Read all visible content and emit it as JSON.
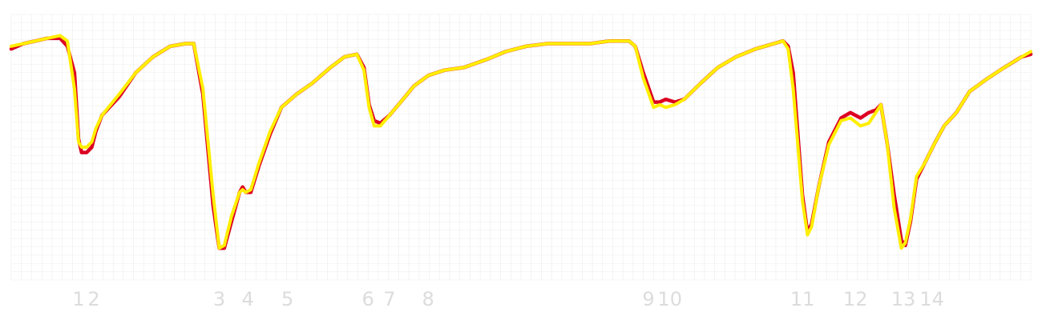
{
  "chart_data": {
    "type": "line",
    "title": "",
    "xlabel": "",
    "ylabel": "",
    "grid": true,
    "legend": "none",
    "xlim": [
      0,
      100
    ],
    "ylim": [
      0,
      100
    ],
    "x_ticks": [
      {
        "label": "1",
        "x": 6.6
      },
      {
        "label": "2",
        "x": 8.1
      },
      {
        "label": "3",
        "x": 20.4
      },
      {
        "label": "4",
        "x": 23.2
      },
      {
        "label": "5",
        "x": 27.1
      },
      {
        "label": "6",
        "x": 35.0
      },
      {
        "label": "7",
        "x": 37.1
      },
      {
        "label": "8",
        "x": 40.9
      },
      {
        "label": "9",
        "x": 62.5
      },
      {
        "label": "10",
        "x": 64.6
      },
      {
        "label": "11",
        "x": 77.6
      },
      {
        "label": "12",
        "x": 82.8
      },
      {
        "label": "13",
        "x": 87.5
      },
      {
        "label": "14",
        "x": 90.3
      }
    ],
    "series": [
      {
        "color": "#dd0022",
        "x": [
          0,
          1.2,
          2.4,
          3.5,
          4.8,
          5.5,
          6.2,
          6.6,
          6.9,
          7.4,
          7.9,
          8.3,
          8.9,
          10.6,
          12.2,
          13.9,
          15.6,
          17.1,
          17.9,
          18.8,
          19.8,
          20.4,
          20.9,
          21.6,
          22.4,
          22.7,
          23.0,
          23.5,
          24.3,
          25.4,
          26.5,
          28.0,
          29.5,
          31.3,
          32.7,
          33.9,
          34.6,
          35.1,
          35.6,
          36.2,
          37.1,
          38.2,
          39.5,
          40.9,
          42.5,
          44.4,
          46.6,
          48.5,
          50.5,
          52.6,
          54.8,
          56.8,
          58.7,
          60.6,
          61.2,
          62.0,
          63.0,
          63.6,
          64.2,
          65.1,
          66.0,
          67.6,
          69.3,
          71.1,
          73.0,
          74.8,
          75.7,
          76.2,
          76.7,
          77.6,
          78.1,
          78.5,
          79.2,
          80.2,
          81.4,
          82.3,
          83.3,
          84.1,
          84.8,
          85.3,
          85.9,
          86.6,
          87.3,
          87.7,
          88.2,
          88.8,
          89.6,
          90.5,
          91.5,
          92.7,
          94.0,
          95.8,
          97.4,
          99.1,
          100
        ],
        "y": [
          87,
          89,
          90,
          91,
          91,
          88,
          78,
          53,
          48,
          48,
          50,
          56,
          62,
          69,
          78,
          84,
          88,
          89,
          89,
          70,
          28,
          12,
          12,
          22,
          33,
          35,
          33,
          33,
          43,
          55,
          65,
          70,
          74,
          80,
          84,
          85,
          80,
          66,
          60,
          59,
          62,
          67,
          73,
          77,
          79,
          80,
          83,
          86,
          88,
          89,
          89,
          89,
          90,
          90,
          88,
          78,
          67,
          67,
          68,
          67,
          68,
          74,
          80,
          84,
          87,
          89,
          90,
          88,
          78,
          32,
          18,
          21,
          35,
          52,
          61,
          63,
          61,
          63,
          64,
          66,
          52,
          32,
          15,
          13,
          22,
          38,
          44,
          51,
          58,
          63,
          71,
          76,
          80,
          84,
          85
        ]
      },
      {
        "color": "#ffee00",
        "x": [
          0,
          1.2,
          2.4,
          3.5,
          4.8,
          5.5,
          6.2,
          6.6,
          6.9,
          7.4,
          7.9,
          8.3,
          8.9,
          10.6,
          12.2,
          13.9,
          15.6,
          17.1,
          17.9,
          18.8,
          19.8,
          20.4,
          20.9,
          21.6,
          22.4,
          22.7,
          23.0,
          23.5,
          24.3,
          25.4,
          26.5,
          28.0,
          29.5,
          31.3,
          32.7,
          33.9,
          34.6,
          35.1,
          35.6,
          36.2,
          37.1,
          38.2,
          39.5,
          40.9,
          42.5,
          44.4,
          46.6,
          48.5,
          50.5,
          52.6,
          54.8,
          56.8,
          58.7,
          60.6,
          61.2,
          62.0,
          63.0,
          63.6,
          64.2,
          65.1,
          66.0,
          67.6,
          69.3,
          71.1,
          73.0,
          74.8,
          75.7,
          76.2,
          76.7,
          77.6,
          78.1,
          78.5,
          79.2,
          80.2,
          81.4,
          82.3,
          83.3,
          84.1,
          84.8,
          85.3,
          85.9,
          86.6,
          87.3,
          87.7,
          88.2,
          88.8,
          89.6,
          90.5,
          91.5,
          92.7,
          94.0,
          95.8,
          97.4,
          99.1,
          100
        ],
        "y": [
          88,
          89,
          90,
          91,
          92,
          90,
          72,
          52,
          50,
          50,
          52,
          57,
          62,
          70,
          78,
          84,
          88,
          89,
          89,
          72,
          32,
          12,
          13,
          24,
          33,
          34,
          33,
          34,
          44,
          56,
          65,
          70,
          74,
          80,
          84,
          85,
          79,
          65,
          58,
          58,
          62,
          67,
          73,
          77,
          79,
          80,
          83,
          86,
          88,
          89,
          89,
          89,
          90,
          90,
          88,
          76,
          65,
          66,
          65,
          66,
          68,
          74,
          80,
          84,
          87,
          89,
          90,
          87,
          72,
          30,
          17,
          20,
          35,
          51,
          60,
          61,
          58,
          59,
          63,
          66,
          52,
          27,
          12,
          14,
          23,
          39,
          44,
          51,
          58,
          63,
          71,
          76,
          80,
          84,
          86
        ]
      }
    ]
  }
}
